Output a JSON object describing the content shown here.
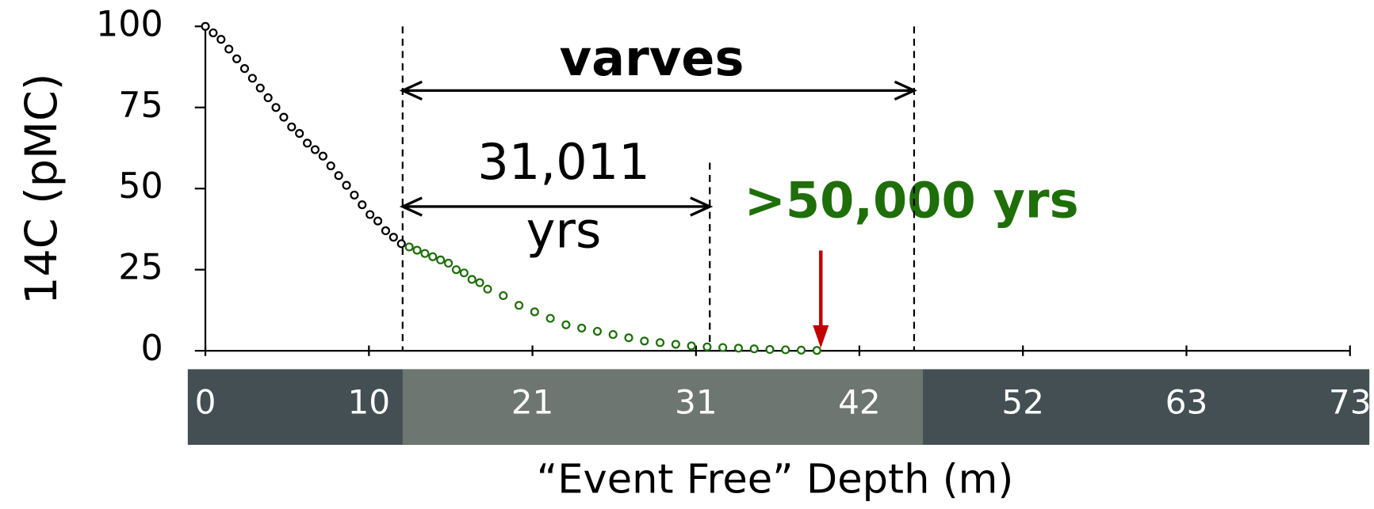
{
  "chart_data": {
    "type": "scatter",
    "ylabel": "14C (pMC)",
    "xlabel": "“Event Free” Depth (m)",
    "xlim": [
      0,
      73
    ],
    "ylim": [
      0,
      100
    ],
    "xticks": [
      0,
      {
        "value": 10.43,
        "label": "10"
      },
      {
        "value": 20.86,
        "label": "21"
      },
      {
        "value": 31.29,
        "label": "31"
      },
      {
        "value": 41.71,
        "label": "42"
      },
      {
        "value": 52.14,
        "label": "52"
      },
      {
        "value": 62.57,
        "label": "63"
      },
      73
    ],
    "yticks": [
      0,
      25,
      50,
      75,
      100
    ],
    "series": [
      {
        "color": "#000000",
        "x": [
          0,
          0.5,
          1,
          1.5,
          2,
          2.5,
          3,
          3.5,
          4,
          4.5,
          5,
          5.5,
          6,
          6.5,
          7,
          7.5,
          8,
          8.5,
          9,
          9.5,
          10,
          10.5,
          11,
          11.5,
          12,
          12.5
        ],
        "values": [
          100,
          98,
          96,
          93,
          90,
          87,
          84,
          81,
          78,
          75,
          72,
          69,
          67,
          64,
          62,
          60,
          57,
          54,
          51,
          48,
          45,
          42,
          40,
          37,
          35,
          33
        ]
      },
      {
        "color": "#1e6e0a",
        "x": [
          13,
          13.5,
          14,
          14.5,
          15,
          15.5,
          16,
          16.5,
          17,
          17.5,
          18,
          19,
          20,
          21,
          22,
          23,
          24,
          25,
          26,
          27,
          28,
          29,
          30,
          31,
          32,
          33,
          34,
          35,
          36,
          37,
          38,
          39
        ],
        "values": [
          32,
          31,
          30,
          29,
          28,
          27,
          25,
          24,
          22,
          21,
          19,
          17,
          14,
          12,
          10,
          8,
          7,
          6,
          5,
          4,
          3,
          2.5,
          2,
          1.5,
          1.2,
          1,
          0.8,
          0.6,
          0.4,
          0.3,
          0.2,
          0.1
        ]
      }
    ],
    "reference_lines": [
      12.58,
      32.17,
      45.2
    ],
    "arrow_x": 39.25,
    "annotations": {
      "varves": "varves",
      "span_value": "31,011",
      "span_unit": "yrs",
      "age": ">50,000 yrs"
    },
    "age_color": "#1e6e0a",
    "arrow_color": "#c00000"
  }
}
